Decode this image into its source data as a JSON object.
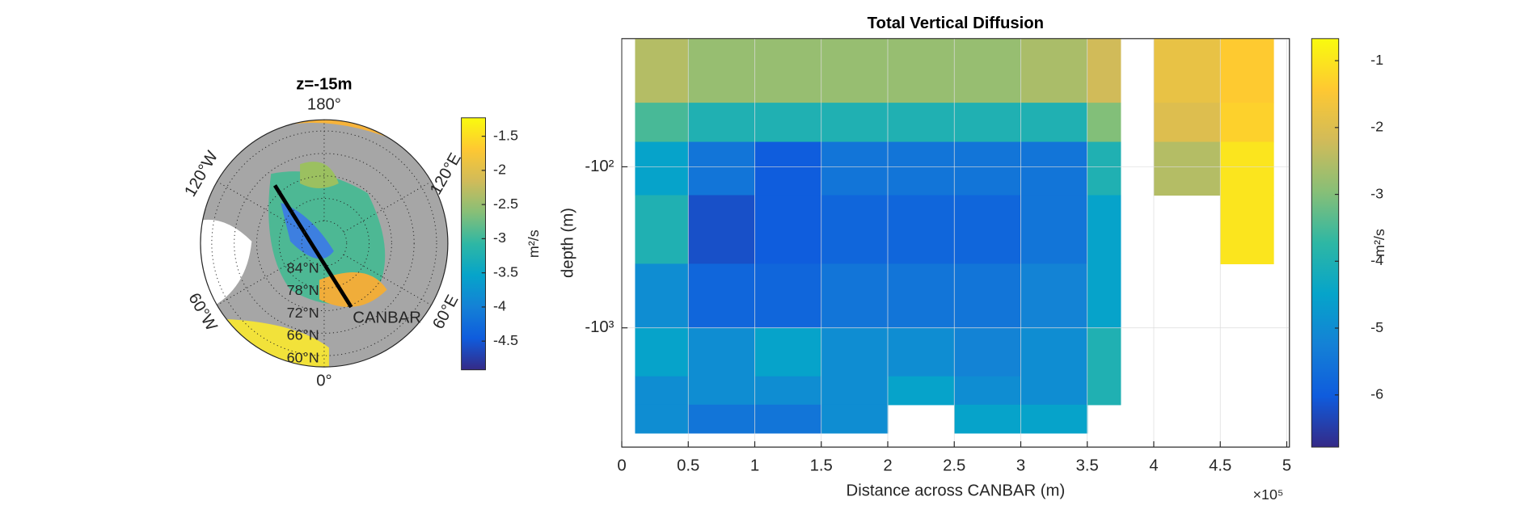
{
  "chart_data": [
    {
      "type": "polar_map",
      "title": "z=-15m",
      "lat_limit": 57,
      "lat_ticks": [
        {
          "value": 84,
          "label": "84°N"
        },
        {
          "value": 78,
          "label": "78°N"
        },
        {
          "value": 72,
          "label": "72°N"
        },
        {
          "value": 66,
          "label": "66°N"
        },
        {
          "value": 60,
          "label": "60°N"
        }
      ],
      "lon_ticks": [
        {
          "value": 180,
          "label": "180°"
        },
        {
          "value": -120,
          "label": "120°W"
        },
        {
          "value": 120,
          "label": "120°E"
        },
        {
          "value": -60,
          "label": "60°W"
        },
        {
          "value": 60,
          "label": "60°E"
        },
        {
          "value": 0,
          "label": "0°"
        }
      ],
      "annotation": "CANBAR",
      "colormap": "parula",
      "colorbar": {
        "label": "m²/s",
        "clim": [
          -4.92,
          -1.23
        ],
        "ticks": [
          -1.5,
          -2,
          -2.5,
          -3,
          -3.5,
          -4,
          -4.5
        ]
      }
    },
    {
      "type": "heatmap",
      "title": "Total Vertical Diffusion",
      "x_label": "Distance across CANBAR (m)",
      "y_label": "depth (m)",
      "x_multiplier": "×10⁵",
      "yscale": "log",
      "grid": true,
      "colormap": "parula",
      "xlim": [
        0,
        502000
      ],
      "ylim": [
        -16,
        -5500
      ],
      "xticks": [
        0,
        {
          "value": 50000,
          "label": "0.5"
        },
        {
          "value": 100000,
          "label": "1"
        },
        {
          "value": 150000,
          "label": "1.5"
        },
        {
          "value": 200000,
          "label": "2"
        },
        {
          "value": 250000,
          "label": "2.5"
        },
        {
          "value": 300000,
          "label": "3"
        },
        {
          "value": 350000,
          "label": "3.5"
        },
        {
          "value": 400000,
          "label": "4"
        },
        {
          "value": 450000,
          "label": "4.5"
        },
        {
          "value": 500000,
          "label": "5"
        }
      ],
      "yticks": [
        {
          "value": -100,
          "label": "-10²"
        },
        {
          "value": -1000,
          "label": "-10³"
        }
      ],
      "x_edges": [
        10000,
        50000,
        100000,
        150000,
        200000,
        250000,
        300000,
        350000,
        375000,
        400000,
        450000,
        490000
      ],
      "y_edges": [
        -16,
        -40,
        -70,
        -150,
        -400,
        -1000,
        -2000,
        -3000,
        -4500
      ],
      "z": [
        [
          -2.5,
          -2.8,
          -2.8,
          -2.8,
          -2.8,
          -2.8,
          -2.6,
          -2.2,
          null,
          -1.8,
          -1.4
        ],
        [
          -3.5,
          -4,
          -4,
          -4,
          -4,
          -4,
          -4,
          -3,
          null,
          -2,
          -1.3
        ],
        [
          -4.5,
          -5.5,
          -6,
          -5.5,
          -5.5,
          -5.5,
          -5.5,
          -4,
          null,
          -2.5,
          -1
        ],
        [
          -4,
          -6.2,
          -6,
          -5.8,
          -5.8,
          -5.8,
          -5.5,
          -4.5,
          null,
          null,
          -1
        ],
        [
          -5,
          -5.8,
          -5.8,
          -5.5,
          -5.5,
          -5.5,
          -5.2,
          -4.5,
          null,
          null,
          null
        ],
        [
          -4.5,
          -5,
          -4.5,
          -5,
          -5,
          -5.2,
          -5,
          -4,
          null,
          null,
          null
        ],
        [
          -5,
          -5,
          -5,
          -5,
          -4.5,
          -5,
          -5,
          -4,
          null,
          null,
          null
        ],
        [
          -5,
          -5.5,
          -5.5,
          -5,
          null,
          -4.5,
          -4.5,
          null,
          null,
          null,
          null
        ]
      ],
      "colorbar": {
        "label": "m²/s",
        "clim": [
          -6.78,
          -0.67
        ],
        "ticks": [
          -1,
          -2,
          -3,
          -4,
          -5,
          -6
        ]
      }
    }
  ]
}
